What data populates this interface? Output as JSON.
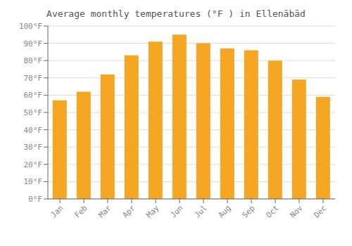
{
  "chart_data": {
    "type": "bar",
    "title": "Average monthly temperatures (°F ) in Ellenābād",
    "categories": [
      "Jan",
      "Feb",
      "Mar",
      "Apr",
      "May",
      "Jun",
      "Jul",
      "Aug",
      "Sep",
      "Oct",
      "Nov",
      "Dec"
    ],
    "values": [
      57,
      62,
      72,
      83,
      91,
      95,
      90,
      87,
      86,
      80,
      69,
      59
    ],
    "color": "#F5A623",
    "ylim": [
      0,
      100
    ],
    "yticks": [
      {
        "value": 0,
        "label": "0°F"
      },
      {
        "value": 10,
        "label": "10°F"
      },
      {
        "value": 20,
        "label": "20°F"
      },
      {
        "value": 30,
        "label": "30°F"
      },
      {
        "value": 40,
        "label": "40°F"
      },
      {
        "value": 50,
        "label": "50°F"
      },
      {
        "value": 60,
        "label": "60°F"
      },
      {
        "value": 70,
        "label": "70°F"
      },
      {
        "value": 80,
        "label": "80°F"
      },
      {
        "value": 90,
        "label": "90°F"
      },
      {
        "value": 100,
        "label": "100°F"
      }
    ],
    "grid": true
  }
}
